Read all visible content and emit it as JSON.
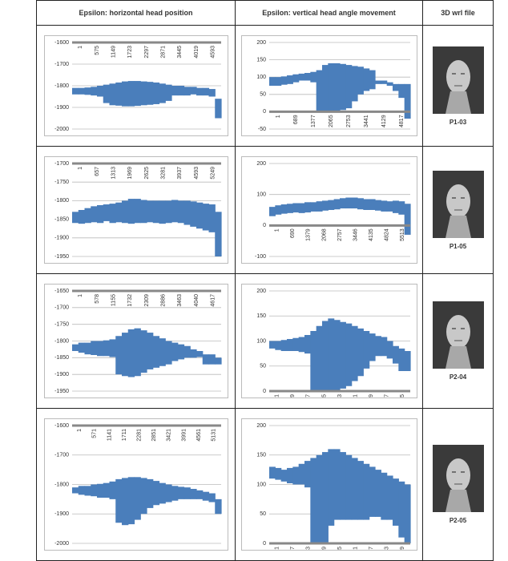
{
  "table": {
    "headers": [
      "Epsilon: horizontal head position",
      "Epsilon: vertical head angle movement",
      "3D wrl file"
    ],
    "rows": [
      {
        "label": "P1-03"
      },
      {
        "label": "P1-05"
      },
      {
        "label": "P2-04"
      },
      {
        "label": "P2-05"
      }
    ]
  },
  "chart_data": [
    {
      "type": "range",
      "color": "#4a7ebb",
      "grid": true,
      "categories": [
        "1",
        "575",
        "1149",
        "1723",
        "2297",
        "2871",
        "3445",
        "4019",
        "4593"
      ],
      "ylim": [
        -2000,
        -1600
      ],
      "yticks": [
        -1600,
        -1700,
        -1800,
        -1900,
        -2000
      ],
      "high": [
        -1810,
        -1810,
        -1808,
        -1805,
        -1800,
        -1795,
        -1790,
        -1785,
        -1780,
        -1778,
        -1778,
        -1780,
        -1782,
        -1785,
        -1790,
        -1795,
        -1800,
        -1800,
        -1805,
        -1805,
        -1810,
        -1810,
        -1815,
        -1860
      ],
      "low": [
        -1840,
        -1840,
        -1842,
        -1845,
        -1850,
        -1880,
        -1890,
        -1892,
        -1895,
        -1895,
        -1893,
        -1890,
        -1888,
        -1885,
        -1880,
        -1870,
        -1845,
        -1845,
        -1845,
        -1840,
        -1845,
        -1845,
        -1850,
        -1950
      ]
    },
    {
      "type": "range",
      "color": "#4a7ebb",
      "grid": true,
      "categories": [
        "1",
        "689",
        "1377",
        "2065",
        "2753",
        "3441",
        "4129",
        "4817"
      ],
      "ylim": [
        -50,
        200
      ],
      "yticks": [
        200,
        150,
        100,
        50,
        0,
        -50
      ],
      "high": [
        100,
        100,
        102,
        105,
        108,
        110,
        112,
        115,
        120,
        135,
        140,
        140,
        138,
        135,
        132,
        130,
        125,
        120,
        90,
        90,
        85,
        80,
        80,
        80
      ],
      "low": [
        75,
        75,
        78,
        80,
        85,
        90,
        90,
        85,
        0,
        0,
        0,
        0,
        5,
        10,
        30,
        50,
        60,
        65,
        80,
        80,
        75,
        60,
        40,
        -20
      ]
    },
    {
      "type": "range",
      "color": "#4a7ebb",
      "grid": true,
      "categories": [
        "1",
        "657",
        "1313",
        "1969",
        "2625",
        "3281",
        "3937",
        "4593",
        "5249"
      ],
      "ylim": [
        -1950,
        -1700
      ],
      "yticks": [
        -1700,
        -1750,
        -1800,
        -1850,
        -1900,
        -1950
      ],
      "high": [
        -1830,
        -1825,
        -1820,
        -1815,
        -1812,
        -1810,
        -1808,
        -1805,
        -1800,
        -1795,
        -1795,
        -1798,
        -1800,
        -1800,
        -1800,
        -1800,
        -1798,
        -1800,
        -1800,
        -1802,
        -1805,
        -1808,
        -1810,
        -1830
      ],
      "low": [
        -1860,
        -1862,
        -1860,
        -1858,
        -1860,
        -1855,
        -1860,
        -1858,
        -1860,
        -1862,
        -1860,
        -1860,
        -1858,
        -1860,
        -1862,
        -1860,
        -1858,
        -1860,
        -1865,
        -1870,
        -1875,
        -1880,
        -1885,
        -1950
      ]
    },
    {
      "type": "range",
      "color": "#4a7ebb",
      "grid": true,
      "categories": [
        "1",
        "690",
        "1379",
        "2068",
        "2757",
        "3446",
        "4135",
        "4824",
        "5513"
      ],
      "ylim": [
        -100,
        200
      ],
      "yticks": [
        200,
        100,
        0,
        -100
      ],
      "high": [
        60,
        65,
        68,
        70,
        72,
        72,
        75,
        75,
        78,
        80,
        82,
        85,
        88,
        90,
        90,
        88,
        85,
        85,
        82,
        80,
        78,
        80,
        78,
        70
      ],
      "low": [
        30,
        35,
        38,
        40,
        42,
        40,
        42,
        45,
        45,
        48,
        50,
        52,
        55,
        55,
        55,
        52,
        50,
        50,
        48,
        45,
        45,
        40,
        35,
        -30
      ]
    },
    {
      "type": "range",
      "color": "#4a7ebb",
      "grid": true,
      "categories": [
        "1",
        "578",
        "1155",
        "1732",
        "2309",
        "2886",
        "3463",
        "4040",
        "4617"
      ],
      "ylim": [
        -1950,
        -1650
      ],
      "yticks": [
        -1650,
        -1700,
        -1750,
        -1800,
        -1850,
        -1900,
        -1950
      ],
      "high": [
        -1810,
        -1805,
        -1805,
        -1800,
        -1800,
        -1798,
        -1795,
        -1785,
        -1775,
        -1765,
        -1762,
        -1768,
        -1775,
        -1785,
        -1792,
        -1800,
        -1805,
        -1810,
        -1815,
        -1825,
        -1830,
        -1840,
        -1840,
        -1850
      ],
      "low": [
        -1830,
        -1835,
        -1840,
        -1842,
        -1845,
        -1845,
        -1848,
        -1900,
        -1905,
        -1908,
        -1905,
        -1895,
        -1885,
        -1880,
        -1875,
        -1870,
        -1860,
        -1855,
        -1850,
        -1850,
        -1848,
        -1870,
        -1870,
        -1870
      ]
    },
    {
      "type": "range",
      "color": "#4a7ebb",
      "grid": true,
      "categories": [
        "1",
        "689",
        "1377",
        "2065",
        "2753",
        "3441",
        "4129",
        "4817",
        "5505"
      ],
      "ylim": [
        0,
        200
      ],
      "yticks": [
        200,
        150,
        100,
        50,
        0
      ],
      "high": [
        100,
        100,
        102,
        104,
        106,
        108,
        112,
        120,
        130,
        140,
        145,
        142,
        138,
        135,
        130,
        125,
        120,
        115,
        110,
        108,
        100,
        90,
        85,
        80
      ],
      "low": [
        85,
        82,
        80,
        80,
        80,
        78,
        75,
        0,
        0,
        0,
        0,
        0,
        5,
        10,
        20,
        30,
        45,
        60,
        70,
        70,
        65,
        55,
        40,
        40
      ]
    },
    {
      "type": "range",
      "color": "#4a7ebb",
      "grid": true,
      "categories": [
        "1",
        "571",
        "1141",
        "1711",
        "2281",
        "2851",
        "3421",
        "3991",
        "4561",
        "5131"
      ],
      "ylim": [
        -2000,
        -1600
      ],
      "yticks": [
        -1600,
        -1700,
        -1800,
        -1900,
        -2000
      ],
      "high": [
        -1810,
        -1805,
        -1805,
        -1800,
        -1798,
        -1795,
        -1790,
        -1782,
        -1778,
        -1775,
        -1775,
        -1778,
        -1782,
        -1788,
        -1795,
        -1800,
        -1805,
        -1808,
        -1810,
        -1815,
        -1820,
        -1825,
        -1830,
        -1850
      ],
      "low": [
        -1830,
        -1835,
        -1838,
        -1840,
        -1845,
        -1845,
        -1850,
        -1930,
        -1938,
        -1935,
        -1920,
        -1900,
        -1880,
        -1870,
        -1865,
        -1860,
        -1855,
        -1850,
        -1850,
        -1850,
        -1850,
        -1855,
        -1860,
        -1900
      ]
    },
    {
      "type": "range",
      "color": "#4a7ebb",
      "grid": true,
      "categories": [
        "1",
        "697",
        "1393",
        "2089",
        "2785",
        "3481",
        "4177",
        "4873",
        "5569"
      ],
      "ylim": [
        0,
        200
      ],
      "yticks": [
        200,
        150,
        100,
        50,
        0
      ],
      "high": [
        130,
        128,
        125,
        128,
        130,
        135,
        140,
        145,
        150,
        155,
        160,
        160,
        155,
        150,
        145,
        140,
        135,
        130,
        125,
        120,
        115,
        110,
        105,
        100
      ],
      "low": [
        110,
        108,
        105,
        102,
        100,
        100,
        95,
        0,
        0,
        0,
        30,
        40,
        40,
        40,
        40,
        40,
        40,
        45,
        45,
        40,
        40,
        30,
        10,
        0
      ]
    }
  ]
}
